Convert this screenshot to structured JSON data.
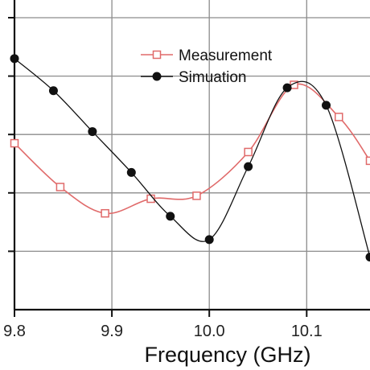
{
  "chart_data": {
    "type": "line",
    "xlabel": "Frequency (GHz)",
    "ylabel": "",
    "xlim": [
      9.8,
      10.165
    ],
    "ylim": [
      0,
      1
    ],
    "x_ticks": [
      "9.8",
      "9.9",
      "10.0",
      "10.1"
    ],
    "x_tick_values": [
      9.8,
      9.9,
      10.0,
      10.1
    ],
    "y_tick_values": [
      0.2,
      0.4,
      0.6,
      0.8,
      1.0
    ],
    "grid": true,
    "legend_position": "top-right",
    "series": [
      {
        "name": "Measurement",
        "marker": "open-square",
        "color": "#e06a6a",
        "x": [
          9.8,
          9.847,
          9.893,
          9.94,
          9.987,
          10.04,
          10.087,
          10.133,
          10.165
        ],
        "y": [
          0.57,
          0.42,
          0.33,
          0.38,
          0.39,
          0.54,
          0.77,
          0.66,
          0.51
        ]
      },
      {
        "name": "Simuation",
        "marker": "filled-circle",
        "color": "#111111",
        "x": [
          9.8,
          9.84,
          9.88,
          9.92,
          9.96,
          10.0,
          10.04,
          10.08,
          10.12,
          10.165
        ],
        "y": [
          0.86,
          0.75,
          0.61,
          0.47,
          0.32,
          0.24,
          0.49,
          0.76,
          0.7,
          0.18
        ]
      }
    ]
  }
}
